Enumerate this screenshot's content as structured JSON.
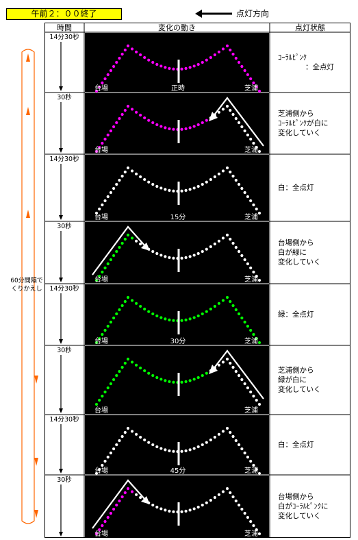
{
  "header": {
    "title": "午前２：００終了",
    "direction_label": "点灯方向"
  },
  "table": {
    "columns": [
      "時間",
      "変化の動き",
      "点灯状態"
    ]
  },
  "loop_label": [
    "60分間隔で",
    "くりかえし"
  ],
  "rows": [
    {
      "time": "14分30秒",
      "left": "台場",
      "mid": "正時",
      "right": "芝浦",
      "status": [
        "ｺｰﾗﾙﾋﾟﾝｸ",
        "：全点灯"
      ],
      "pattern": "full",
      "c1": "#ff00ff",
      "c2": "#ff00ff",
      "arrow": "none"
    },
    {
      "time": "30秒",
      "left": "台場",
      "mid": "",
      "right": "芝浦",
      "status": [
        "芝浦側から",
        "ｺｰﾗﾙﾋﾟﾝｸが白に",
        "変化していく"
      ],
      "pattern": "right",
      "c1": "#ff00ff",
      "c2": "#ffffff",
      "arrow": "right"
    },
    {
      "time": "14分30秒",
      "left": "台場",
      "mid": "15分",
      "right": "芝浦",
      "status": [
        "白：全点灯"
      ],
      "pattern": "full",
      "c1": "#ffffff",
      "c2": "#ffffff",
      "arrow": "none"
    },
    {
      "time": "30秒",
      "left": "台場",
      "mid": "",
      "right": "芝浦",
      "status": [
        "台場側から",
        "白が緑に",
        "変化していく"
      ],
      "pattern": "left",
      "c1": "#00ff00",
      "c2": "#ffffff",
      "arrow": "left"
    },
    {
      "time": "14分30秒",
      "left": "台場",
      "mid": "30分",
      "right": "芝浦",
      "status": [
        "緑：全点灯"
      ],
      "pattern": "full",
      "c1": "#00ff00",
      "c2": "#00ff00",
      "arrow": "none"
    },
    {
      "time": "30秒",
      "left": "台場",
      "mid": "",
      "right": "芝浦",
      "status": [
        "芝浦側から",
        "緑が白に",
        "変化していく"
      ],
      "pattern": "right",
      "c1": "#00ff00",
      "c2": "#ffffff",
      "arrow": "right"
    },
    {
      "time": "14分30秒",
      "left": "台場",
      "mid": "45分",
      "right": "芝浦",
      "status": [
        "白：全点灯"
      ],
      "pattern": "full",
      "c1": "#ffffff",
      "c2": "#ffffff",
      "arrow": "none"
    },
    {
      "time": "30秒",
      "left": "台場",
      "mid": "",
      "right": "芝浦",
      "status": [
        "台場側から",
        "白がｺｰﾗﾙﾋﾟﾝｸに",
        "変化していく"
      ],
      "pattern": "left",
      "c1": "#ff00ff",
      "c2": "#ffffff",
      "arrow": "left"
    }
  ],
  "colors": {
    "title_bg": "#ffff00",
    "loop": "#ff6600",
    "panel_bg": "#000000"
  }
}
